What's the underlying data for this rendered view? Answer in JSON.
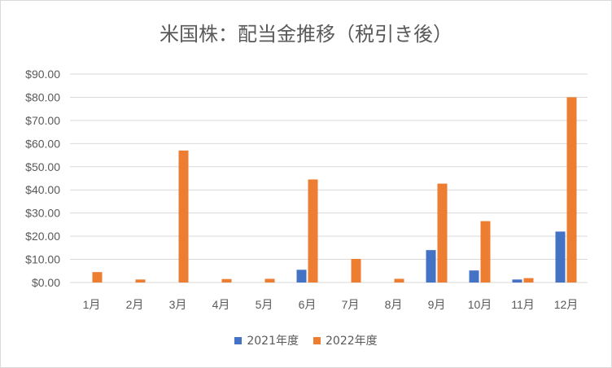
{
  "chart_data": {
    "type": "bar",
    "title": "米国株：配当金推移（税引き後）",
    "categories": [
      "1月",
      "2月",
      "3月",
      "4月",
      "5月",
      "6月",
      "7月",
      "8月",
      "9月",
      "10月",
      "11月",
      "12月"
    ],
    "series": [
      {
        "name": "2021年度",
        "color": "#4472c4",
        "values": [
          0,
          0,
          0,
          0,
          0,
          5.5,
          0,
          0,
          14.0,
          5.2,
          1.3,
          22.0
        ]
      },
      {
        "name": "2022年度",
        "color": "#ed7d31",
        "values": [
          4.5,
          1.3,
          57.0,
          1.5,
          1.6,
          44.5,
          10.2,
          1.6,
          42.7,
          26.5,
          1.9,
          80.0
        ]
      }
    ],
    "ylim": [
      0,
      90
    ],
    "yticks": [
      "$0.00",
      "$10.00",
      "$20.00",
      "$30.00",
      "$40.00",
      "$50.00",
      "$60.00",
      "$70.00",
      "$80.00",
      "$90.00"
    ],
    "grid": true,
    "legend": "bottom"
  }
}
